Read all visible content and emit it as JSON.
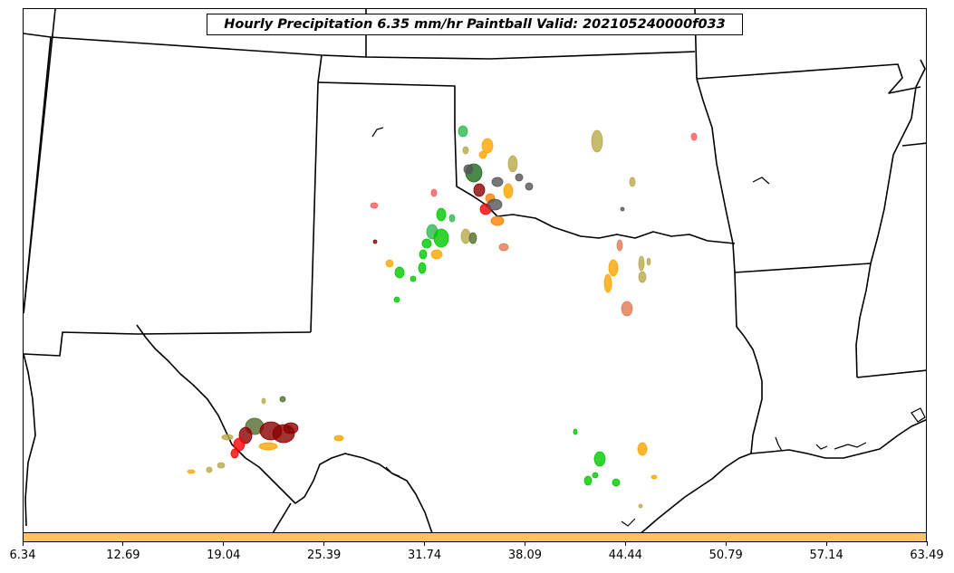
{
  "title": "Hourly Precipitation 6.35 mm/hr Paintball Valid: 202105240000f033",
  "colorbar": {
    "color": "#ffc266",
    "ticks": [
      "6.34",
      "12.69",
      "19.04",
      "25.39",
      "31.74",
      "38.09",
      "44.44",
      "50.79",
      "57.14",
      "63.49"
    ]
  },
  "map": {
    "region": "southern-plains",
    "state_outline_color": "#000000",
    "member_colors": [
      "#ff0000",
      "#ff7f00",
      "#ffa500",
      "#2db84d",
      "#00c800",
      "#1e6b1e",
      "#b8a94a",
      "#8b0000",
      "#555555",
      "#556b2f",
      "#e07a4f",
      "#ff5a5a"
    ]
  }
}
